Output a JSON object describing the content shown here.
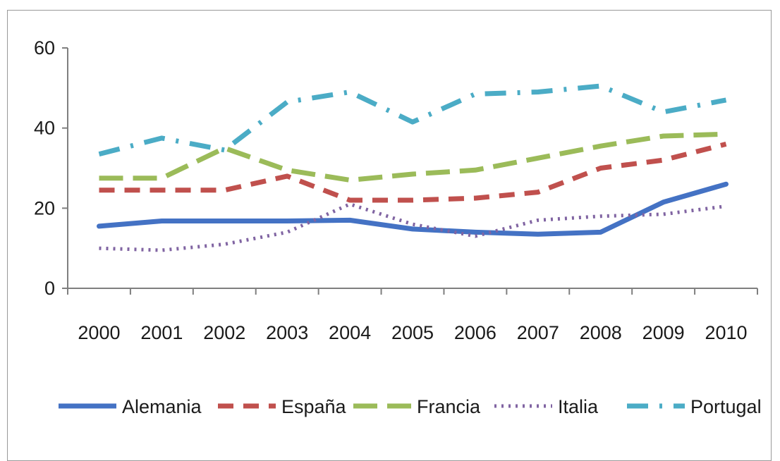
{
  "chart_data": {
    "type": "line",
    "title": "",
    "xlabel": "",
    "ylabel": "",
    "categories": [
      "2000",
      "2001",
      "2002",
      "2003",
      "2004",
      "2005",
      "2006",
      "2007",
      "2008",
      "2009",
      "2010"
    ],
    "ylim": [
      0,
      60
    ],
    "yticks": [
      0,
      20,
      40,
      60
    ],
    "grid": false,
    "legend_position": "bottom",
    "series": [
      {
        "name": "Alemania",
        "color": "#4472c4",
        "dash": "solid",
        "values": [
          15.5,
          16.8,
          16.8,
          16.8,
          17.0,
          14.8,
          14.0,
          13.5,
          14.0,
          21.5,
          26.0
        ]
      },
      {
        "name": "España",
        "color": "#c0504d",
        "dash": "dash",
        "values": [
          24.5,
          24.5,
          24.5,
          28.0,
          22.0,
          22.0,
          22.5,
          24.0,
          30.0,
          32.0,
          36.0
        ]
      },
      {
        "name": "Francia",
        "color": "#9bbb59",
        "dash": "longdash",
        "values": [
          27.5,
          27.5,
          35.0,
          29.5,
          27.0,
          28.5,
          29.5,
          32.5,
          35.5,
          38.0,
          38.5
        ]
      },
      {
        "name": "Italia",
        "color": "#8064a2",
        "dash": "dot",
        "values": [
          10.0,
          9.5,
          11.0,
          14.0,
          21.0,
          16.0,
          13.0,
          17.0,
          18.0,
          18.5,
          20.5
        ]
      },
      {
        "name": "Portugal",
        "color": "#4bacc6",
        "dash": "dashdot",
        "values": [
          33.5,
          37.5,
          34.5,
          46.5,
          49.0,
          41.5,
          48.5,
          49.0,
          50.5,
          44.0,
          47.0
        ]
      }
    ]
  }
}
